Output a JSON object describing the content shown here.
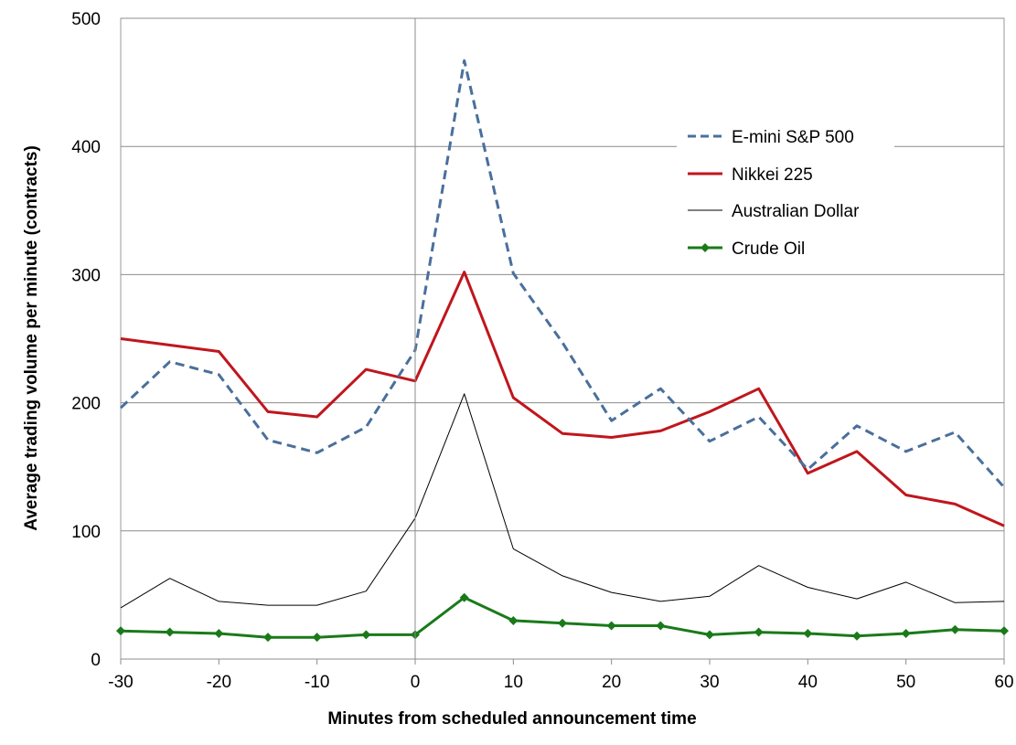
{
  "chart_data": {
    "type": "line",
    "title": "",
    "xlabel": "Minutes from scheduled announcement time",
    "ylabel": "Average trading volume per minute (contracts)",
    "xlim": [
      -30,
      60
    ],
    "ylim": [
      0,
      500
    ],
    "x_ticks": [
      -30,
      -20,
      -10,
      0,
      10,
      20,
      30,
      40,
      50,
      60
    ],
    "y_ticks": [
      0,
      100,
      200,
      300,
      400,
      500
    ],
    "grid": "horizontal",
    "legend_position": "upper-right",
    "x": [
      -30,
      -25,
      -20,
      -15,
      -10,
      -5,
      0,
      5,
      10,
      15,
      20,
      25,
      30,
      35,
      40,
      45,
      50,
      55,
      60
    ],
    "series": [
      {
        "name": "E-mini S&P 500",
        "color": "#4a6f9c",
        "style": "dashed",
        "values": [
          196,
          232,
          222,
          171,
          161,
          181,
          241,
          467,
          301,
          247,
          186,
          211,
          170,
          189,
          148,
          182,
          162,
          177,
          134
        ]
      },
      {
        "name": "Nikkei 225",
        "color": "#c0161c",
        "style": "solid-thick",
        "values": [
          250,
          245,
          240,
          193,
          189,
          226,
          217,
          302,
          204,
          176,
          173,
          178,
          193,
          211,
          145,
          162,
          128,
          121,
          104
        ]
      },
      {
        "name": "Australian Dollar",
        "color": "#000000",
        "style": "solid-thin",
        "values": [
          40,
          63,
          45,
          42,
          42,
          53,
          110,
          207,
          86,
          65,
          52,
          45,
          49,
          73,
          56,
          47,
          60,
          44,
          45
        ]
      },
      {
        "name": "Crude Oil",
        "color": "#1a7a1a",
        "style": "solid-markers",
        "values": [
          22,
          21,
          20,
          17,
          17,
          19,
          19,
          48,
          30,
          28,
          26,
          26,
          19,
          21,
          20,
          18,
          20,
          23,
          22
        ]
      }
    ]
  }
}
